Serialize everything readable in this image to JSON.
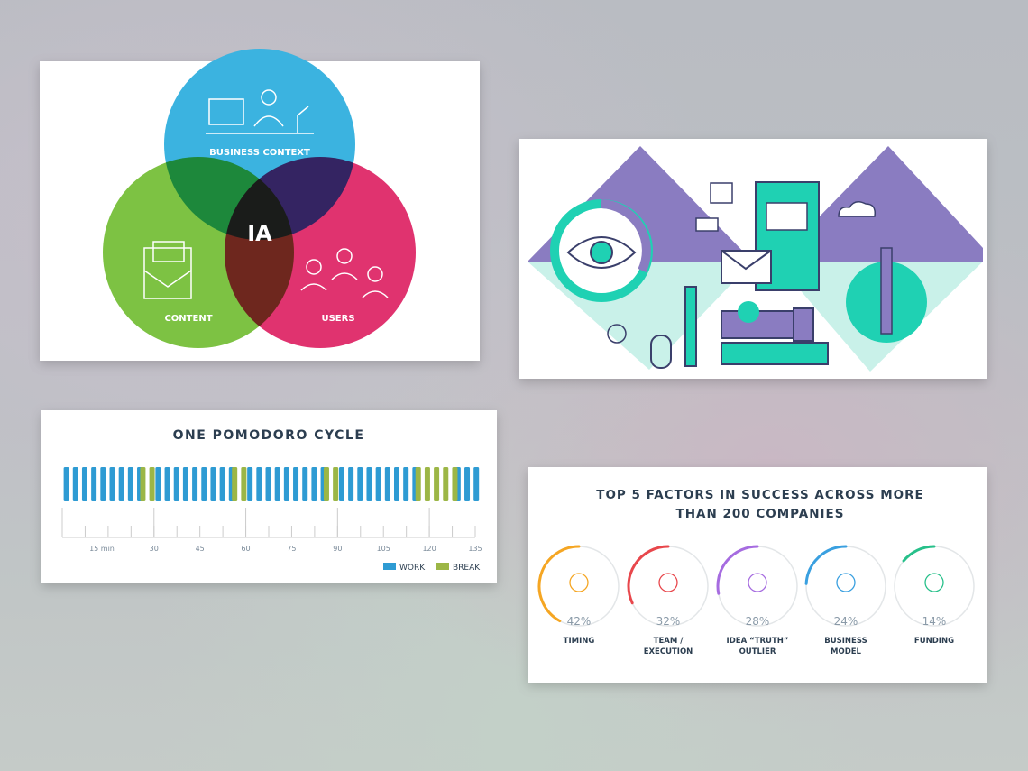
{
  "venn": {
    "center": "IA",
    "labels": [
      "BUSINESS CONTEXT",
      "CONTENT",
      "USERS"
    ]
  },
  "chart_data": [
    {
      "type": "pomodoro",
      "title": "ONE POMODORO CYCLE",
      "xlim": [
        0,
        135
      ],
      "xticks": [
        {
          "value": 15,
          "label": "15 min"
        },
        30,
        45,
        60,
        75,
        90,
        105,
        120,
        135
      ],
      "major_xticks": [
        0,
        30,
        60,
        90,
        120
      ],
      "minor_xticks": [
        7.5,
        22.5,
        37.5,
        52.5,
        67.5,
        82.5,
        97.5,
        112.5,
        127.5
      ],
      "series": [
        {
          "name": "WORK",
          "color": "#2e9bd3",
          "intervals": [
            [
              0,
              25
            ],
            [
              30,
              55
            ],
            [
              60,
              85
            ],
            [
              90,
              115
            ],
            [
              128,
              135
            ]
          ]
        },
        {
          "name": "BREAK",
          "color": "#9cb646",
          "intervals": [
            [
              25,
              30
            ],
            [
              55,
              60
            ],
            [
              85,
              90
            ],
            [
              115,
              128
            ]
          ]
        }
      ]
    },
    {
      "type": "rings",
      "title": "TOP 5 FACTORS IN SUCCESS ACROSS MORE\nTHAN 200 COMPANIES",
      "categories": [
        "TIMING",
        "TEAM /\nEXECUTION",
        "IDEA “TRUTH”\nOUTLIER",
        "BUSINESS\nMODEL",
        "FUNDING"
      ],
      "values": [
        42,
        32,
        28,
        24,
        14
      ],
      "value_labels": [
        "42%",
        "32%",
        "28%",
        "24%",
        "14%"
      ],
      "colors": [
        "#f5a623",
        "#e8474c",
        "#a66ce0",
        "#3aa0e0",
        "#27c08a"
      ]
    }
  ]
}
